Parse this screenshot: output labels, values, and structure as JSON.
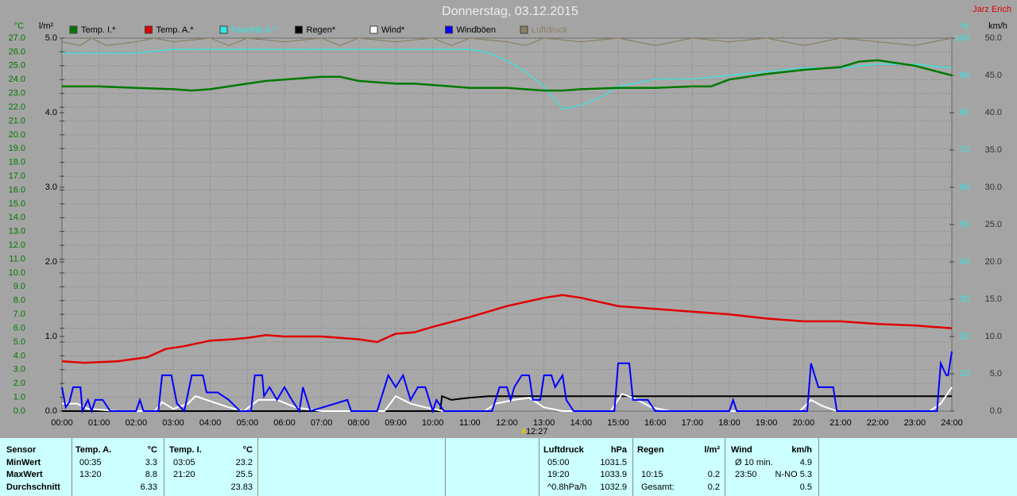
{
  "chart_data": {
    "type": "line",
    "title": "Donnerstag, 03.12.2015",
    "author": "Jarz Erich",
    "marker_label": "12:27",
    "xlim": [
      0,
      24
    ],
    "xticks": [
      {
        "value": 0,
        "label": "00:00"
      },
      {
        "value": 1,
        "label": "01:00"
      },
      {
        "value": 2,
        "label": "02:00"
      },
      {
        "value": 3,
        "label": "03:00"
      },
      {
        "value": 4,
        "label": "04:00"
      },
      {
        "value": 5,
        "label": "05:00"
      },
      {
        "value": 6,
        "label": "06:00"
      },
      {
        "value": 7,
        "label": "07:00"
      },
      {
        "value": 8,
        "label": "08:00"
      },
      {
        "value": 9,
        "label": "09:00"
      },
      {
        "value": 10,
        "label": "10:00"
      },
      {
        "value": 11,
        "label": "11:00"
      },
      {
        "value": 12,
        "label": "12:00"
      },
      {
        "value": 13,
        "label": "13:00"
      },
      {
        "value": 14,
        "label": "14:00"
      },
      {
        "value": 15,
        "label": "15:00"
      },
      {
        "value": 16,
        "label": "16:00"
      },
      {
        "value": 17,
        "label": "17:00"
      },
      {
        "value": 18,
        "label": "18:00"
      },
      {
        "value": 19,
        "label": "19:00"
      },
      {
        "value": 20,
        "label": "20:00"
      },
      {
        "value": 21,
        "label": "21:00"
      },
      {
        "value": 22,
        "label": "22:00"
      },
      {
        "value": 23,
        "label": "23:00"
      },
      {
        "value": 24,
        "label": "24:00"
      }
    ],
    "y_label": "°C",
    "ylim": [
      0,
      27
    ],
    "yticks": [
      {
        "value": 0,
        "label": "0.0"
      },
      {
        "value": 1,
        "label": "1.0"
      },
      {
        "value": 2,
        "label": "2.0"
      },
      {
        "value": 3,
        "label": "3.0"
      },
      {
        "value": 4,
        "label": "4.0"
      },
      {
        "value": 5,
        "label": "5.0"
      },
      {
        "value": 6,
        "label": "6.0"
      },
      {
        "value": 7,
        "label": "7.0"
      },
      {
        "value": 8,
        "label": "8.0"
      },
      {
        "value": 9,
        "label": "9.0"
      },
      {
        "value": 10,
        "label": "10.0"
      },
      {
        "value": 11,
        "label": "11.0"
      },
      {
        "value": 12,
        "label": "12.0"
      },
      {
        "value": 13,
        "label": "13.0"
      },
      {
        "value": 14,
        "label": "14.0"
      },
      {
        "value": 15,
        "label": "15.0"
      },
      {
        "value": 16,
        "label": "16.0"
      },
      {
        "value": 17,
        "label": "17.0"
      },
      {
        "value": 18,
        "label": "18.0"
      },
      {
        "value": 19,
        "label": "19.0"
      },
      {
        "value": 20,
        "label": "20.0"
      },
      {
        "value": 21,
        "label": "21.0"
      },
      {
        "value": 22,
        "label": "22.0"
      },
      {
        "value": 23,
        "label": "23.0"
      },
      {
        "value": 24,
        "label": "24.0"
      },
      {
        "value": 25,
        "label": "25.0"
      },
      {
        "value": 26,
        "label": "26.0"
      },
      {
        "value": 27,
        "label": "27.0"
      }
    ],
    "y3_label": "l/m²",
    "y3lim": [
      0,
      5
    ],
    "y3ticks": [
      {
        "value": 0,
        "label": "0.0"
      },
      {
        "value": 1,
        "label": "1.0"
      },
      {
        "value": 2,
        "label": "2.0"
      },
      {
        "value": 3,
        "label": "3.0"
      },
      {
        "value": 4,
        "label": "4.0"
      },
      {
        "value": 5,
        "label": "5.0"
      }
    ],
    "y4_label": "%",
    "y4lim": [
      0,
      100
    ],
    "y4ticks": [
      10,
      20,
      30,
      40,
      50,
      60,
      70,
      80,
      90,
      100
    ],
    "y2_label": "km/h",
    "y2lim": [
      0,
      50
    ],
    "y2ticks": [
      {
        "value": 0,
        "label": "0.0"
      },
      {
        "value": 5,
        "label": "5.0"
      },
      {
        "value": 10,
        "label": "10.0"
      },
      {
        "value": 15,
        "label": "15.0"
      },
      {
        "value": 20,
        "label": "20.0"
      },
      {
        "value": 25,
        "label": "25.0"
      },
      {
        "value": 30,
        "label": "30.0"
      },
      {
        "value": 35,
        "label": "35.0"
      },
      {
        "value": 40,
        "label": "40.0"
      },
      {
        "value": 45,
        "label": "45.0"
      },
      {
        "value": 50,
        "label": "50.0"
      }
    ],
    "grid": true,
    "series": [
      {
        "name": "Temp. I.*",
        "color": "#007800",
        "axis": "y",
        "x": [
          0,
          1,
          2,
          3,
          3.5,
          4,
          5,
          5.5,
          6.5,
          7,
          7.5,
          8,
          9,
          9.5,
          10.5,
          11,
          12,
          13,
          13.5,
          14,
          15,
          16,
          17,
          17.5,
          18,
          19,
          20,
          21,
          21.5,
          22,
          23,
          24
        ],
        "values": [
          23.5,
          23.5,
          23.4,
          23.3,
          23.2,
          23.3,
          23.7,
          23.9,
          24.1,
          24.2,
          24.2,
          23.9,
          23.7,
          23.7,
          23.5,
          23.4,
          23.4,
          23.2,
          23.2,
          23.3,
          23.4,
          23.4,
          23.5,
          23.5,
          24.0,
          24.4,
          24.7,
          24.9,
          25.3,
          25.4,
          25.0,
          24.3
        ]
      },
      {
        "name": "Temp. A.*",
        "color": "#e00000",
        "axis": "y",
        "x": [
          0,
          0.6,
          1.5,
          2.3,
          2.8,
          3.3,
          4,
          4.6,
          5,
          5.5,
          6,
          7,
          8,
          8.5,
          9,
          9.5,
          10,
          11,
          12,
          12.5,
          13,
          13.5,
          14,
          15,
          16,
          17,
          18,
          19,
          20,
          21,
          22,
          23,
          24
        ],
        "values": [
          3.6,
          3.5,
          3.6,
          3.9,
          4.5,
          4.7,
          5.1,
          5.2,
          5.3,
          5.5,
          5.4,
          5.4,
          5.2,
          5.0,
          5.6,
          5.7,
          6.1,
          6.8,
          7.6,
          7.9,
          8.2,
          8.4,
          8.2,
          7.6,
          7.4,
          7.2,
          7.0,
          6.7,
          6.5,
          6.5,
          6.3,
          6.2,
          6.0
        ]
      },
      {
        "name": "Feuchte A.*",
        "color": "#30e8e8",
        "axis": "y4",
        "x": [
          0,
          2,
          3,
          6,
          9,
          11,
          11.5,
          12,
          12.5,
          13,
          13.5,
          14,
          14.5,
          15,
          15.5,
          16,
          17,
          18,
          19,
          20,
          21,
          22,
          23,
          24
        ],
        "values": [
          96,
          96,
          97,
          97,
          97,
          97,
          96,
          94,
          91,
          87,
          81,
          82,
          84,
          87,
          88,
          89,
          89,
          90,
          91,
          92,
          92,
          93,
          93,
          92
        ]
      },
      {
        "name": "Regen*",
        "color": "#000000",
        "axis": "y3",
        "x": [
          0,
          10.2,
          10.25,
          10.5,
          11,
          11.5,
          12,
          24
        ],
        "values": [
          0,
          0,
          0.2,
          0.15,
          0.18,
          0.2,
          0.2,
          0.2
        ]
      },
      {
        "name": "Wind*",
        "color": "#ffffff",
        "axis": "y2",
        "x": [
          0,
          0.4,
          0.7,
          1.5,
          2.5,
          2.7,
          3.0,
          3.4,
          3.6,
          3.9,
          4.5,
          4.9,
          5.3,
          5.8,
          6.3,
          7.0,
          8.7,
          9.0,
          9.4,
          9.8,
          10.3,
          11.4,
          11.7,
          12.2,
          12.6,
          13.0,
          13.5,
          14.8,
          15.1,
          15.4,
          15.9,
          16.4,
          19.9,
          20.2,
          20.5,
          20.9,
          23.4,
          23.7,
          24
        ],
        "values": [
          1,
          1,
          0.3,
          0,
          0,
          1.2,
          0.3,
          1,
          2,
          1.5,
          0.5,
          0,
          1.5,
          1.5,
          0.5,
          0,
          0,
          2,
          1,
          0.5,
          0,
          0,
          1,
          1.5,
          1.8,
          0.5,
          0,
          0,
          2.3,
          1.8,
          0.5,
          0,
          0,
          1.5,
          0.7,
          0,
          0,
          1,
          3.2
        ]
      },
      {
        "name": "Windböen",
        "color": "#0000ff",
        "axis": "y2",
        "x": [
          0,
          0.1,
          0.2,
          0.3,
          0.5,
          0.55,
          0.7,
          0.8,
          0.9,
          1.1,
          1.3,
          2.0,
          2.1,
          2.2,
          2.6,
          2.7,
          2.95,
          3.1,
          3.3,
          3.5,
          3.8,
          3.9,
          4.2,
          4.5,
          4.8,
          5.1,
          5.2,
          5.4,
          5.45,
          5.6,
          5.8,
          6.0,
          6.2,
          6.4,
          6.5,
          6.7,
          7.7,
          7.8,
          8.5,
          8.8,
          9.0,
          9.2,
          9.4,
          9.6,
          9.8,
          10.0,
          10.1,
          10.3,
          11.6,
          11.8,
          12.0,
          12.1,
          12.2,
          12.4,
          12.6,
          12.7,
          12.9,
          13.0,
          13.2,
          13.3,
          13.5,
          13.6,
          13.8,
          14.9,
          15.0,
          15.3,
          15.4,
          15.8,
          16.0,
          18.0,
          18.1,
          18.2,
          20.1,
          20.2,
          20.4,
          20.8,
          20.9,
          23.6,
          23.7,
          23.85,
          23.9,
          24
        ],
        "values": [
          3.2,
          0.5,
          1.2,
          3.2,
          3.2,
          0,
          1.5,
          0,
          1.5,
          1.5,
          0,
          0,
          1.5,
          0,
          0,
          4.8,
          4.8,
          1,
          0,
          4.8,
          4.8,
          2.5,
          2.5,
          1.5,
          0,
          0,
          4.8,
          4.8,
          2,
          3.2,
          1.5,
          3.2,
          1.5,
          0,
          3.2,
          0,
          1.5,
          0,
          0,
          4.8,
          3.2,
          4.8,
          1.5,
          3.2,
          3.2,
          0,
          1.5,
          0,
          0,
          3.2,
          3.2,
          1.5,
          3.2,
          4.8,
          4.8,
          1.5,
          1.5,
          4.8,
          4.8,
          3.2,
          4.8,
          1.5,
          0,
          0,
          6.4,
          6.4,
          1.5,
          1.5,
          0,
          0,
          1.5,
          0,
          0,
          6.4,
          3.2,
          3.2,
          0,
          0,
          6.4,
          4.8,
          4.8,
          8.0
        ]
      },
      {
        "name": "Luftdruck",
        "color": "#8a8060",
        "axis": "y4",
        "x": [
          0,
          0.5,
          0.8,
          1.2,
          2,
          2.5,
          3,
          4,
          4.5,
          5,
          6,
          7,
          7.5,
          8,
          9,
          10,
          10.5,
          11,
          12,
          12.5,
          13,
          14,
          15,
          16,
          17,
          18,
          19,
          20,
          21,
          22,
          23,
          24
        ],
        "values": [
          99,
          98,
          100,
          98,
          99,
          100,
          99,
          100,
          98,
          100,
          99,
          100,
          98,
          100,
          99,
          100,
          98,
          100,
          99,
          98,
          100,
          99,
          100,
          98,
          100,
          99,
          100,
          98,
          100,
          99,
          98,
          100
        ]
      }
    ]
  },
  "stats": {
    "sections": [
      {
        "title": "Sensor",
        "rows": [
          [
            "MinWert"
          ],
          [
            "MaxWert"
          ],
          [
            "Durchschnitt"
          ]
        ]
      },
      {
        "title": "Temp. A.",
        "unit": "°C",
        "rows": [
          [
            "00:35",
            "3.3"
          ],
          [
            "13:20",
            "8.8"
          ],
          [
            null,
            "6.33"
          ]
        ]
      },
      {
        "title": "Temp. I.",
        "unit": "°C",
        "rows": [
          [
            "03:05",
            "23.2"
          ],
          [
            "21:20",
            "25.5"
          ],
          [
            null,
            "23.83"
          ]
        ]
      },
      {
        "title": "Luftdruck",
        "unit": "hPa",
        "rows": [
          [
            "05:00",
            "1031.5"
          ],
          [
            "19:20",
            "1033.9"
          ],
          [
            "^0.8hPa/h",
            "1032.9"
          ]
        ]
      },
      {
        "title": "Regen",
        "unit": "l/m²",
        "rows": [
          [
            null,
            null
          ],
          [
            "10:15",
            "0.2"
          ],
          [
            "Gesamt:",
            "0.2"
          ]
        ]
      },
      {
        "title": "Wind",
        "unit": "km/h",
        "rows": [
          [
            "Ø 10 min.",
            "4.9"
          ],
          [
            "23:50",
            "N-NO 5.3"
          ],
          [
            null,
            "0.5"
          ]
        ]
      }
    ]
  }
}
